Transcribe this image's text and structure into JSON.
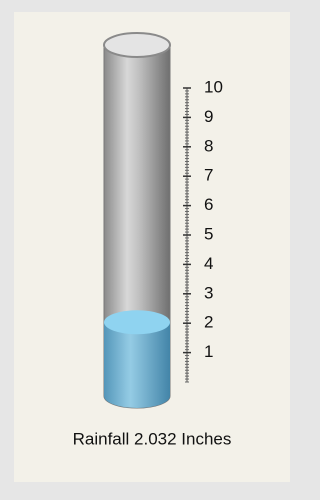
{
  "chart_data": {
    "type": "cylinder",
    "values": [
      2.032
    ],
    "value_labels": [
      "Rainfall 2.032 Inches"
    ],
    "color": "#7cc0e0",
    "ylim": [
      0,
      10
    ],
    "yticks": [
      1,
      2,
      3,
      4,
      5,
      6,
      7,
      8,
      9,
      10
    ]
  }
}
